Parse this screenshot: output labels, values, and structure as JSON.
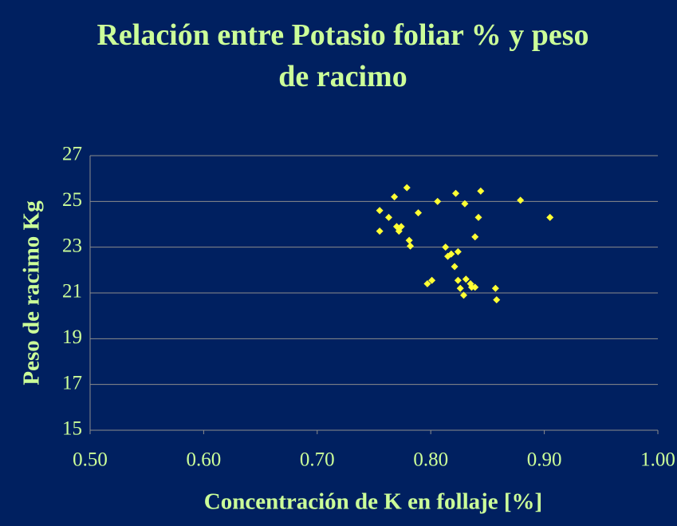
{
  "chart_data": {
    "type": "scatter",
    "title": "Relación entre Potasio foliar % y peso de racimo",
    "x_label": "Concentración de K en follaje [%]",
    "y_label": "Peso de racimo  Kg",
    "x": [
      0.755,
      0.755,
      0.763,
      0.768,
      0.77,
      0.772,
      0.774,
      0.779,
      0.781,
      0.782,
      0.789,
      0.797,
      0.801,
      0.806,
      0.813,
      0.815,
      0.818,
      0.821,
      0.822,
      0.824,
      0.824,
      0.826,
      0.829,
      0.83,
      0.831,
      0.835,
      0.836,
      0.839,
      0.839,
      0.842,
      0.844,
      0.857,
      0.858,
      0.879,
      0.905
    ],
    "values": [
      24.6,
      23.7,
      24.3,
      25.2,
      23.9,
      23.7,
      23.9,
      25.6,
      23.3,
      23.05,
      24.5,
      21.4,
      21.55,
      25.0,
      23.0,
      22.6,
      22.7,
      22.15,
      25.35,
      22.8,
      21.55,
      21.2,
      20.9,
      24.9,
      21.6,
      21.4,
      21.25,
      21.25,
      23.45,
      24.3,
      25.45,
      21.2,
      20.7,
      25.05,
      24.3
    ],
    "color": "#ffff33",
    "xlim": [
      0.5,
      1.0
    ],
    "xticks": [
      {
        "value": 0.5,
        "label": "0.50"
      },
      {
        "value": 0.6,
        "label": "0.60"
      },
      {
        "value": 0.7,
        "label": "0.70"
      },
      {
        "value": 0.8,
        "label": "0.80"
      },
      {
        "value": 0.9,
        "label": "0.90"
      },
      {
        "value": 1.0,
        "label": "1.00"
      }
    ],
    "ylim": [
      15,
      27
    ],
    "yticks": [
      15,
      17,
      19,
      21,
      23,
      25,
      27
    ],
    "grid": true
  }
}
